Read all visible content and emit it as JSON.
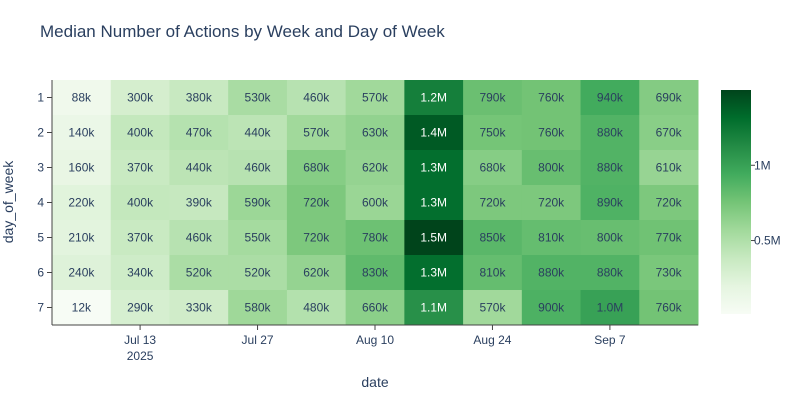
{
  "chart_data": {
    "type": "heatmap",
    "title": "Median Number of Actions by Week and Day of Week",
    "xlabel": "date",
    "ylabel": "day_of_week",
    "x_tick_labels": [
      {
        "label": "Jul 13",
        "sublabel": "2025",
        "at": "2025-07-13"
      },
      {
        "label": "Jul 27",
        "sublabel": "",
        "at": "2025-07-27"
      },
      {
        "label": "Aug 10",
        "sublabel": "",
        "at": "2025-08-10"
      },
      {
        "label": "Aug 24",
        "sublabel": "",
        "at": "2025-08-24"
      },
      {
        "label": "Sep 7",
        "sublabel": "",
        "at": "2025-09-07"
      }
    ],
    "weeks": [
      "2025-07-06",
      "2025-07-13",
      "2025-07-20",
      "2025-07-27",
      "2025-08-03",
      "2025-08-10",
      "2025-08-17",
      "2025-08-24",
      "2025-08-31",
      "2025-09-07",
      "2025-09-14"
    ],
    "days": [
      1,
      2,
      3,
      4,
      5,
      6,
      7
    ],
    "values": [
      [
        88000,
        300000,
        380000,
        530000,
        460000,
        570000,
        1200000,
        790000,
        760000,
        940000,
        690000
      ],
      [
        140000,
        400000,
        470000,
        440000,
        570000,
        630000,
        1400000,
        750000,
        760000,
        880000,
        670000
      ],
      [
        160000,
        370000,
        440000,
        460000,
        680000,
        620000,
        1300000,
        680000,
        800000,
        880000,
        610000
      ],
      [
        220000,
        400000,
        390000,
        590000,
        720000,
        600000,
        1300000,
        720000,
        720000,
        890000,
        720000
      ],
      [
        210000,
        370000,
        460000,
        550000,
        720000,
        780000,
        1500000,
        850000,
        810000,
        800000,
        770000
      ],
      [
        240000,
        340000,
        520000,
        520000,
        620000,
        830000,
        1300000,
        810000,
        880000,
        880000,
        730000
      ],
      [
        12000,
        290000,
        330000,
        580000,
        480000,
        660000,
        1100000,
        570000,
        900000,
        1000000,
        760000
      ]
    ],
    "labels": [
      [
        "88k",
        "300k",
        "380k",
        "530k",
        "460k",
        "570k",
        "1.2M",
        "790k",
        "760k",
        "940k",
        "690k"
      ],
      [
        "140k",
        "400k",
        "470k",
        "440k",
        "570k",
        "630k",
        "1.4M",
        "750k",
        "760k",
        "880k",
        "670k"
      ],
      [
        "160k",
        "370k",
        "440k",
        "460k",
        "680k",
        "620k",
        "1.3M",
        "680k",
        "800k",
        "880k",
        "610k"
      ],
      [
        "220k",
        "400k",
        "390k",
        "590k",
        "720k",
        "600k",
        "1.3M",
        "720k",
        "720k",
        "890k",
        "720k"
      ],
      [
        "210k",
        "370k",
        "460k",
        "550k",
        "720k",
        "780k",
        "1.5M",
        "850k",
        "810k",
        "800k",
        "770k"
      ],
      [
        "240k",
        "340k",
        "520k",
        "520k",
        "620k",
        "830k",
        "1.3M",
        "810k",
        "880k",
        "880k",
        "730k"
      ],
      [
        "12k",
        "290k",
        "330k",
        "580k",
        "480k",
        "660k",
        "1.1M",
        "570k",
        "900k",
        "1.0M",
        "760k"
      ]
    ],
    "zmin": 12000,
    "zmax": 1500000,
    "colorscale": "Greens",
    "colorscale_stops": [
      "#f7fcf5",
      "#e5f5e0",
      "#c7e9c0",
      "#a1d99b",
      "#74c476",
      "#41ab5d",
      "#238b45",
      "#006d2c",
      "#00441b"
    ],
    "colorbar": {
      "ticks": [
        {
          "value": 500000,
          "label": "0.5M"
        },
        {
          "value": 1000000,
          "label": "1M"
        }
      ]
    },
    "grid": false
  }
}
